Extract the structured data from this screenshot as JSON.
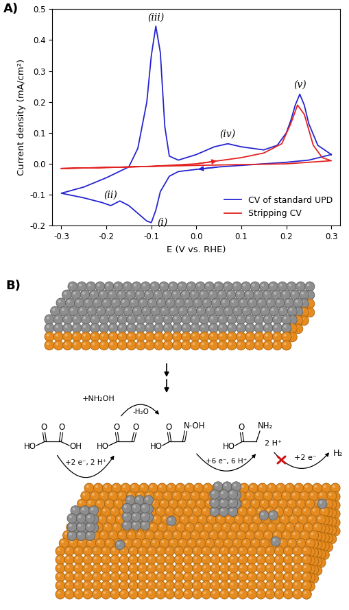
{
  "panel_labels": [
    "A)",
    "B)"
  ],
  "chart_data": {
    "type": "line",
    "x_label": "E (V vs. RHE)",
    "y_label": "Current density (mA/cm²)",
    "xlim": [
      -0.32,
      0.32
    ],
    "ylim": [
      -0.2,
      0.5
    ],
    "xticks": [
      -0.3,
      -0.2,
      -0.1,
      0.0,
      0.1,
      0.2,
      0.3
    ],
    "yticks": [
      -0.2,
      -0.1,
      0.0,
      0.1,
      0.2,
      0.3,
      0.4,
      0.5
    ],
    "legend": "lower right",
    "series": [
      {
        "name": "CV of standard UPD",
        "color": "#2424d0",
        "x": [
          0.3,
          0.25,
          0.2,
          0.15,
          0.1,
          0.05,
          0.0,
          -0.04,
          -0.06,
          -0.08,
          -0.09,
          -0.1,
          -0.11,
          -0.13,
          -0.15,
          -0.17,
          -0.19,
          -0.21,
          -0.25,
          -0.3,
          -0.25,
          -0.2,
          -0.15,
          -0.13,
          -0.11,
          -0.1,
          -0.09,
          -0.08,
          -0.07,
          -0.06,
          -0.04,
          0.0,
          0.04,
          0.07,
          0.1,
          0.15,
          0.18,
          0.2,
          0.21,
          0.22,
          0.23,
          0.24,
          0.25,
          0.27,
          0.3
        ],
        "values": [
          0.03,
          0.012,
          0.005,
          0.0,
          -0.005,
          -0.01,
          -0.018,
          -0.025,
          -0.04,
          -0.09,
          -0.15,
          -0.19,
          -0.185,
          -0.16,
          -0.135,
          -0.12,
          -0.135,
          -0.125,
          -0.11,
          -0.095,
          -0.075,
          -0.045,
          -0.01,
          0.05,
          0.2,
          0.35,
          0.445,
          0.36,
          0.12,
          0.025,
          0.012,
          0.03,
          0.055,
          0.065,
          0.055,
          0.045,
          0.06,
          0.1,
          0.14,
          0.19,
          0.225,
          0.19,
          0.13,
          0.06,
          0.03
        ]
      },
      {
        "name": "Stripping CV",
        "color": "#e32222",
        "x": [
          -0.3,
          -0.2,
          -0.1,
          0.0,
          0.05,
          0.1,
          0.15,
          0.19,
          0.21,
          0.225,
          0.24,
          0.26,
          0.28,
          0.3,
          0.2,
          0.0,
          -0.3
        ],
        "values": [
          -0.015,
          -0.012,
          -0.008,
          0.0,
          0.01,
          0.02,
          0.035,
          0.065,
          0.13,
          0.19,
          0.16,
          0.06,
          0.02,
          0.01,
          0.0,
          -0.005,
          -0.015
        ]
      }
    ],
    "annotations": [
      {
        "text": "(i)",
        "x": -0.1,
        "y": -0.19
      },
      {
        "text": "(ii)",
        "x": -0.19,
        "y": -0.135
      },
      {
        "text": "(iii)",
        "x": -0.09,
        "y": 0.445
      },
      {
        "text": "(iv)",
        "x": 0.07,
        "y": 0.065
      },
      {
        "text": "(v)",
        "x": 0.23,
        "y": 0.225
      }
    ]
  },
  "diagram": {
    "molecules": [
      [
        "O",
        "O",
        "HO",
        "OH"
      ],
      [
        "O",
        "O",
        "HO"
      ],
      [
        "O",
        "N-OH",
        "HO"
      ],
      [
        "O",
        "NH₂",
        "HO"
      ]
    ],
    "steps": [
      "+2 e⁻, 2 H⁺",
      "+6 e⁻, 6 H⁺"
    ],
    "reagent_in": "+NH₂OH",
    "reagent_out": "-H₂O",
    "her": {
      "reactant": "2 H⁺",
      "electrons": "+2 e⁻",
      "product": "H₂"
    }
  }
}
